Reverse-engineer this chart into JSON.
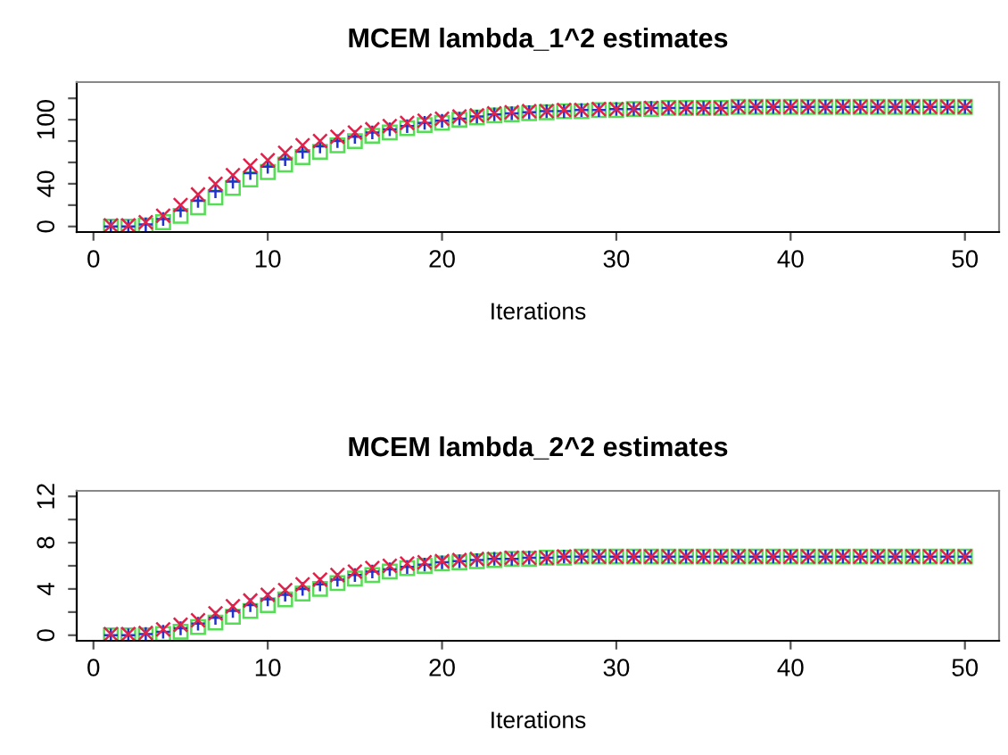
{
  "chart_data": [
    {
      "type": "scatter",
      "title": "MCEM lambda_1^2 estimates",
      "xlabel": "Iterations",
      "x": [
        1,
        2,
        3,
        4,
        5,
        6,
        7,
        8,
        9,
        10,
        11,
        12,
        13,
        14,
        15,
        16,
        17,
        18,
        19,
        20,
        21,
        22,
        23,
        24,
        25,
        26,
        27,
        28,
        29,
        30,
        31,
        32,
        33,
        34,
        35,
        36,
        37,
        38,
        39,
        40,
        41,
        42,
        43,
        44,
        45,
        46,
        47,
        48,
        49,
        50
      ],
      "series": [
        {
          "color": "#55dd55",
          "marker": "square",
          "values": [
            0,
            0,
            1,
            4,
            10,
            18,
            27,
            36,
            44,
            51,
            58,
            65,
            70,
            76,
            80,
            85,
            88,
            92,
            95,
            97,
            100,
            102,
            104,
            105,
            106,
            107,
            108,
            108,
            109,
            109,
            110,
            110,
            111,
            111,
            111,
            111,
            112,
            112,
            112,
            112,
            112,
            112,
            112,
            112,
            112,
            112,
            112,
            112,
            112,
            112
          ]
        },
        {
          "color": "#2233cc",
          "marker": "plus",
          "values": [
            0,
            0,
            2,
            7,
            15,
            24,
            33,
            42,
            50,
            56,
            63,
            70,
            75,
            80,
            84,
            88,
            91,
            94,
            97,
            99,
            101,
            103,
            105,
            106,
            107,
            108,
            108,
            109,
            109,
            110,
            110,
            111,
            111,
            111,
            111,
            111,
            112,
            112,
            112,
            112,
            112,
            112,
            112,
            112,
            112,
            112,
            112,
            112,
            112,
            112
          ]
        },
        {
          "color": "#e0224a",
          "marker": "cross",
          "values": [
            1,
            1,
            4,
            10,
            20,
            30,
            40,
            48,
            57,
            62,
            69,
            76,
            80,
            84,
            88,
            91,
            94,
            97,
            99,
            101,
            103,
            104,
            106,
            107,
            108,
            108,
            109,
            109,
            110,
            110,
            110,
            111,
            111,
            111,
            111,
            111,
            112,
            112,
            112,
            112,
            112,
            112,
            112,
            112,
            112,
            112,
            112,
            112,
            112,
            112
          ]
        }
      ],
      "xlim": [
        -0.96,
        51.96
      ],
      "xticks": [
        0,
        10,
        20,
        30,
        40,
        50
      ],
      "ylim": [
        -5.2,
        135.2
      ],
      "yticks": [
        0,
        {
          "value": 20,
          "label": null
        },
        40,
        {
          "value": 60,
          "label": null
        },
        {
          "value": 80,
          "label": null
        },
        100,
        {
          "value": 120,
          "label": null
        }
      ],
      "grid": false,
      "legend": false
    },
    {
      "type": "scatter",
      "title": "MCEM lambda_2^2 estimates",
      "xlabel": "Iterations",
      "x": [
        1,
        2,
        3,
        4,
        5,
        6,
        7,
        8,
        9,
        10,
        11,
        12,
        13,
        14,
        15,
        16,
        17,
        18,
        19,
        20,
        21,
        22,
        23,
        24,
        25,
        26,
        27,
        28,
        29,
        30,
        31,
        32,
        33,
        34,
        35,
        36,
        37,
        38,
        39,
        40,
        41,
        42,
        43,
        44,
        45,
        46,
        47,
        48,
        49,
        50
      ],
      "series": [
        {
          "color": "#55dd55",
          "marker": "square",
          "values": [
            0,
            0,
            0,
            0.1,
            0.3,
            0.7,
            1.1,
            1.6,
            2.1,
            2.6,
            3.1,
            3.6,
            4.0,
            4.5,
            4.9,
            5.2,
            5.5,
            5.8,
            6.0,
            6.2,
            6.3,
            6.4,
            6.5,
            6.6,
            6.6,
            6.7,
            6.7,
            6.8,
            6.8,
            6.8,
            6.8,
            6.8,
            6.8,
            6.8,
            6.8,
            6.8,
            6.8,
            6.8,
            6.8,
            6.8,
            6.8,
            6.8,
            6.8,
            6.8,
            6.8,
            6.8,
            6.8,
            6.8,
            6.8,
            6.8
          ]
        },
        {
          "color": "#2233cc",
          "marker": "plus",
          "values": [
            0,
            0,
            0.1,
            0.3,
            0.6,
            1.0,
            1.5,
            2.1,
            2.6,
            3.1,
            3.5,
            4.0,
            4.4,
            4.8,
            5.2,
            5.5,
            5.7,
            5.9,
            6.1,
            6.3,
            6.4,
            6.5,
            6.6,
            6.6,
            6.7,
            6.7,
            6.8,
            6.8,
            6.8,
            6.8,
            6.8,
            6.8,
            6.8,
            6.8,
            6.8,
            6.8,
            6.8,
            6.8,
            6.8,
            6.8,
            6.8,
            6.8,
            6.8,
            6.8,
            6.8,
            6.8,
            6.8,
            6.8,
            6.8,
            6.8
          ]
        },
        {
          "color": "#e0224a",
          "marker": "cross",
          "values": [
            0.1,
            0.1,
            0.2,
            0.5,
            0.9,
            1.3,
            1.9,
            2.5,
            3.0,
            3.5,
            3.9,
            4.4,
            4.8,
            5.2,
            5.5,
            5.8,
            6.0,
            6.2,
            6.3,
            6.4,
            6.5,
            6.6,
            6.6,
            6.7,
            6.7,
            6.7,
            6.8,
            6.8,
            6.8,
            6.8,
            6.8,
            6.8,
            6.8,
            6.8,
            6.8,
            6.8,
            6.8,
            6.8,
            6.8,
            6.8,
            6.8,
            6.8,
            6.8,
            6.8,
            6.8,
            6.8,
            6.8,
            6.8,
            6.8,
            6.8
          ]
        }
      ],
      "xlim": [
        -0.96,
        51.96
      ],
      "xticks": [
        0,
        10,
        20,
        30,
        40,
        50
      ],
      "ylim": [
        -0.48,
        12.48
      ],
      "yticks": [
        0,
        {
          "value": 2,
          "label": null
        },
        4,
        {
          "value": 6,
          "label": null
        },
        8,
        {
          "value": 10,
          "label": null
        },
        12
      ],
      "grid": false,
      "legend": false
    }
  ]
}
